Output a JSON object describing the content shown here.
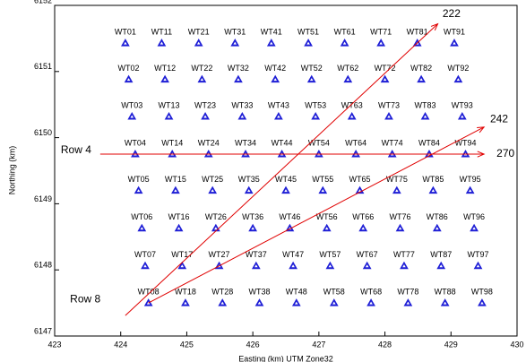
{
  "chart_data": {
    "type": "scatter",
    "xlabel": "Easting (km) UTM Zone32",
    "ylabel": "Northing (km)",
    "xlim": [
      423,
      430
    ],
    "ylim": [
      6147,
      6152
    ],
    "xticks": [
      423,
      424,
      425,
      426,
      427,
      428,
      429,
      430
    ],
    "yticks": [
      6147,
      6148,
      6149,
      6150,
      6151,
      6152
    ],
    "color": "#1f1fd6",
    "series": [
      {
        "labels": [
          "WT01",
          "WT11",
          "WT21",
          "WT31",
          "WT41",
          "WT51",
          "WT61",
          "WT71",
          "WT81",
          "WT91"
        ],
        "x": [
          424.07,
          424.62,
          425.18,
          425.73,
          426.28,
          426.84,
          427.39,
          427.94,
          428.49,
          429.05
        ],
        "values": [
          6151.43,
          6151.43,
          6151.43,
          6151.43,
          6151.43,
          6151.43,
          6151.43,
          6151.43,
          6151.43,
          6151.43
        ]
      },
      {
        "labels": [
          "WT02",
          "WT12",
          "WT22",
          "WT32",
          "WT42",
          "WT52",
          "WT62",
          "WT72",
          "WT82",
          "WT92"
        ],
        "x": [
          424.12,
          424.67,
          425.23,
          425.78,
          426.34,
          426.89,
          427.44,
          428.0,
          428.55,
          429.11
        ],
        "values": [
          6150.88,
          6150.88,
          6150.88,
          6150.88,
          6150.88,
          6150.88,
          6150.88,
          6150.88,
          6150.88,
          6150.88
        ]
      },
      {
        "labels": [
          "WT03",
          "WT13",
          "WT23",
          "WT33",
          "WT43",
          "WT53",
          "WT63",
          "WT73",
          "WT83",
          "WT93"
        ],
        "x": [
          424.17,
          424.73,
          425.28,
          425.84,
          426.39,
          426.95,
          427.5,
          428.06,
          428.61,
          429.17
        ],
        "values": [
          6150.32,
          6150.32,
          6150.32,
          6150.32,
          6150.32,
          6150.32,
          6150.32,
          6150.32,
          6150.32,
          6150.32
        ]
      },
      {
        "labels": [
          "WT04",
          "WT14",
          "WT24",
          "WT34",
          "WT44",
          "WT54",
          "WT64",
          "WT74",
          "WT84",
          "WT94"
        ],
        "x": [
          424.22,
          424.78,
          425.33,
          425.89,
          426.44,
          427.0,
          427.56,
          428.11,
          428.67,
          429.22
        ],
        "values": [
          6149.75,
          6149.75,
          6149.75,
          6149.75,
          6149.75,
          6149.75,
          6149.75,
          6149.75,
          6149.75,
          6149.75
        ]
      },
      {
        "labels": [
          "WT05",
          "WT15",
          "WT25",
          "WT35",
          "WT45",
          "WT55",
          "WT65",
          "WT75",
          "WT85",
          "WT95"
        ],
        "x": [
          424.27,
          424.83,
          425.39,
          425.94,
          426.5,
          427.06,
          427.62,
          428.18,
          428.73,
          429.29
        ],
        "values": [
          6149.2,
          6149.2,
          6149.2,
          6149.2,
          6149.2,
          6149.2,
          6149.2,
          6149.2,
          6149.2,
          6149.2
        ]
      },
      {
        "labels": [
          "WT06",
          "WT16",
          "WT26",
          "WT36",
          "WT46",
          "WT56",
          "WT66",
          "WT76",
          "WT86",
          "WT96"
        ],
        "x": [
          424.32,
          424.88,
          425.44,
          426.0,
          426.56,
          427.12,
          427.67,
          428.23,
          428.79,
          429.35
        ],
        "values": [
          6148.63,
          6148.63,
          6148.63,
          6148.63,
          6148.63,
          6148.63,
          6148.63,
          6148.63,
          6148.63,
          6148.63
        ]
      },
      {
        "labels": [
          "WT07",
          "WT17",
          "WT27",
          "WT37",
          "WT47",
          "WT57",
          "WT67",
          "WT77",
          "WT87",
          "WT97"
        ],
        "x": [
          424.37,
          424.93,
          425.49,
          426.05,
          426.61,
          427.17,
          427.73,
          428.29,
          428.85,
          429.41
        ],
        "values": [
          6148.06,
          6148.06,
          6148.06,
          6148.06,
          6148.06,
          6148.06,
          6148.06,
          6148.06,
          6148.06,
          6148.06
        ]
      },
      {
        "labels": [
          "WT08",
          "WT18",
          "WT28",
          "WT38",
          "WT48",
          "WT58",
          "WT68",
          "WT78",
          "WT88",
          "WT98"
        ],
        "x": [
          424.42,
          424.98,
          425.54,
          426.1,
          426.66,
          427.23,
          427.79,
          428.35,
          428.91,
          429.47
        ],
        "values": [
          6147.5,
          6147.5,
          6147.5,
          6147.5,
          6147.5,
          6147.5,
          6147.5,
          6147.5,
          6147.5,
          6147.5
        ]
      }
    ],
    "annotations": [
      {
        "label": "222",
        "color": "#e00000",
        "label_at": "end",
        "x": [
          424.07,
          428.8
        ],
        "y": [
          6147.31,
          6151.72
        ]
      },
      {
        "label": "242",
        "color": "#e00000",
        "label_at": "end",
        "x": [
          424.42,
          429.5
        ],
        "y": [
          6147.5,
          6150.16
        ]
      },
      {
        "label": "270",
        "color": "#e00000",
        "label_at": "end",
        "x": [
          423.69,
          429.5
        ],
        "y": [
          6149.75,
          6149.75
        ]
      },
      {
        "label": "Row 4",
        "color": "#000000",
        "label_at": "start",
        "x": [
          423.69,
          429.5
        ],
        "y": [
          6149.75,
          6149.75
        ]
      },
      {
        "label": "Row 8",
        "color": "#000000",
        "label_at": "start",
        "x": [
          423.83,
          430.0
        ],
        "y": [
          6147.5,
          6147.5
        ]
      }
    ]
  }
}
